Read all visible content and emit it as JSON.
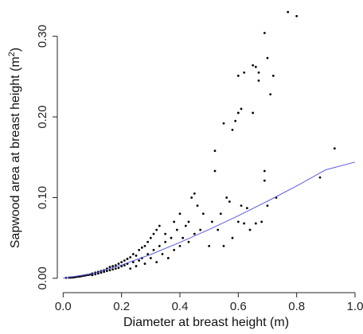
{
  "chart_data": {
    "type": "scatter",
    "title": "",
    "xlabel": "Diameter at breast height (m)",
    "ylabel_main": "Sapwood area at breast height (m",
    "ylabel_sup": "2",
    "ylabel_tail": ")",
    "xlim": [
      -0.02,
      1.0
    ],
    "ylim": [
      -0.005,
      0.34
    ],
    "x_ticks": [
      0.0,
      0.2,
      0.4,
      0.6,
      0.8,
      1.0
    ],
    "x_tick_labels": [
      "0.0",
      "0.2",
      "0.4",
      "0.6",
      "0.8",
      "1.0"
    ],
    "y_ticks": [
      0.0,
      0.1,
      0.2,
      0.3
    ],
    "y_tick_labels": [
      "0.00",
      "0.10",
      "0.20",
      "0.30"
    ],
    "grid": false,
    "colors": {
      "points": "#000000",
      "fit_line": "#5a5ae0"
    },
    "series": [
      {
        "points": [
          [
            0.01,
            0.0005
          ],
          [
            0.02,
            0.0008
          ],
          [
            0.025,
            0.001
          ],
          [
            0.03,
            0.001
          ],
          [
            0.035,
            0.0012
          ],
          [
            0.04,
            0.0015
          ],
          [
            0.045,
            0.0018
          ],
          [
            0.05,
            0.002
          ],
          [
            0.055,
            0.0022
          ],
          [
            0.06,
            0.0025
          ],
          [
            0.065,
            0.003
          ],
          [
            0.07,
            0.0032
          ],
          [
            0.075,
            0.0035
          ],
          [
            0.08,
            0.004
          ],
          [
            0.085,
            0.0042
          ],
          [
            0.09,
            0.0045
          ],
          [
            0.095,
            0.005
          ],
          [
            0.1,
            0.006
          ],
          [
            0.1,
            0.004
          ],
          [
            0.11,
            0.007
          ],
          [
            0.11,
            0.005
          ],
          [
            0.12,
            0.008
          ],
          [
            0.12,
            0.006
          ],
          [
            0.13,
            0.009
          ],
          [
            0.13,
            0.007
          ],
          [
            0.14,
            0.01
          ],
          [
            0.14,
            0.008
          ],
          [
            0.15,
            0.012
          ],
          [
            0.15,
            0.009
          ],
          [
            0.16,
            0.014
          ],
          [
            0.16,
            0.01
          ],
          [
            0.17,
            0.015
          ],
          [
            0.17,
            0.011
          ],
          [
            0.18,
            0.016
          ],
          [
            0.18,
            0.012
          ],
          [
            0.19,
            0.018
          ],
          [
            0.19,
            0.013
          ],
          [
            0.2,
            0.02
          ],
          [
            0.2,
            0.015
          ],
          [
            0.21,
            0.022
          ],
          [
            0.21,
            0.016
          ],
          [
            0.22,
            0.024
          ],
          [
            0.22,
            0.018
          ],
          [
            0.23,
            0.026
          ],
          [
            0.23,
            0.012
          ],
          [
            0.24,
            0.03
          ],
          [
            0.24,
            0.02
          ],
          [
            0.25,
            0.028
          ],
          [
            0.25,
            0.015
          ],
          [
            0.26,
            0.035
          ],
          [
            0.26,
            0.022
          ],
          [
            0.27,
            0.038
          ],
          [
            0.27,
            0.025
          ],
          [
            0.28,
            0.04
          ],
          [
            0.28,
            0.018
          ],
          [
            0.29,
            0.045
          ],
          [
            0.29,
            0.03
          ],
          [
            0.3,
            0.05
          ],
          [
            0.3,
            0.025
          ],
          [
            0.31,
            0.055
          ],
          [
            0.31,
            0.035
          ],
          [
            0.32,
            0.06
          ],
          [
            0.32,
            0.02
          ],
          [
            0.33,
            0.065
          ],
          [
            0.33,
            0.04
          ],
          [
            0.34,
            0.03
          ],
          [
            0.35,
            0.055
          ],
          [
            0.35,
            0.045
          ],
          [
            0.36,
            0.025
          ],
          [
            0.37,
            0.05
          ],
          [
            0.38,
            0.07
          ],
          [
            0.38,
            0.035
          ],
          [
            0.39,
            0.06
          ],
          [
            0.4,
            0.08
          ],
          [
            0.4,
            0.04
          ],
          [
            0.41,
            0.05
          ],
          [
            0.42,
            0.065
          ],
          [
            0.43,
            0.07
          ],
          [
            0.43,
            0.045
          ],
          [
            0.44,
            0.1
          ],
          [
            0.45,
            0.105
          ],
          [
            0.45,
            0.055
          ],
          [
            0.46,
            0.09
          ],
          [
            0.47,
            0.06
          ],
          [
            0.48,
            0.08
          ],
          [
            0.5,
            0.04
          ],
          [
            0.51,
            0.07
          ],
          [
            0.52,
            0.158
          ],
          [
            0.52,
            0.133
          ],
          [
            0.53,
            0.06
          ],
          [
            0.54,
            0.08
          ],
          [
            0.55,
            0.192
          ],
          [
            0.55,
            0.04
          ],
          [
            0.56,
            0.1
          ],
          [
            0.57,
            0.095
          ],
          [
            0.58,
            0.184
          ],
          [
            0.58,
            0.05
          ],
          [
            0.59,
            0.195
          ],
          [
            0.6,
            0.251
          ],
          [
            0.6,
            0.205
          ],
          [
            0.6,
            0.07
          ],
          [
            0.61,
            0.21
          ],
          [
            0.61,
            0.09
          ],
          [
            0.62,
            0.255
          ],
          [
            0.62,
            0.068
          ],
          [
            0.63,
            0.087
          ],
          [
            0.64,
            0.06
          ],
          [
            0.65,
            0.205
          ],
          [
            0.65,
            0.264
          ],
          [
            0.66,
            0.262
          ],
          [
            0.66,
            0.068
          ],
          [
            0.67,
            0.255
          ],
          [
            0.67,
            0.245
          ],
          [
            0.68,
            0.07
          ],
          [
            0.69,
            0.304
          ],
          [
            0.69,
            0.133
          ],
          [
            0.69,
            0.121
          ],
          [
            0.7,
            0.273
          ],
          [
            0.7,
            0.09
          ],
          [
            0.71,
            0.228
          ],
          [
            0.72,
            0.251
          ],
          [
            0.73,
            0.1
          ],
          [
            0.77,
            0.33
          ],
          [
            0.8,
            0.325
          ],
          [
            0.88,
            0.125
          ],
          [
            0.93,
            0.161
          ]
        ]
      },
      {
        "fit_line": [
          [
            0.0,
            0.0
          ],
          [
            0.1,
            0.0055
          ],
          [
            0.2,
            0.0165
          ],
          [
            0.3,
            0.0295
          ],
          [
            0.4,
            0.0445
          ],
          [
            0.5,
            0.0605
          ],
          [
            0.6,
            0.0775
          ],
          [
            0.7,
            0.0955
          ],
          [
            0.8,
            0.1145
          ],
          [
            0.9,
            0.1345
          ],
          [
            1.0,
            0.144
          ]
        ]
      }
    ]
  }
}
